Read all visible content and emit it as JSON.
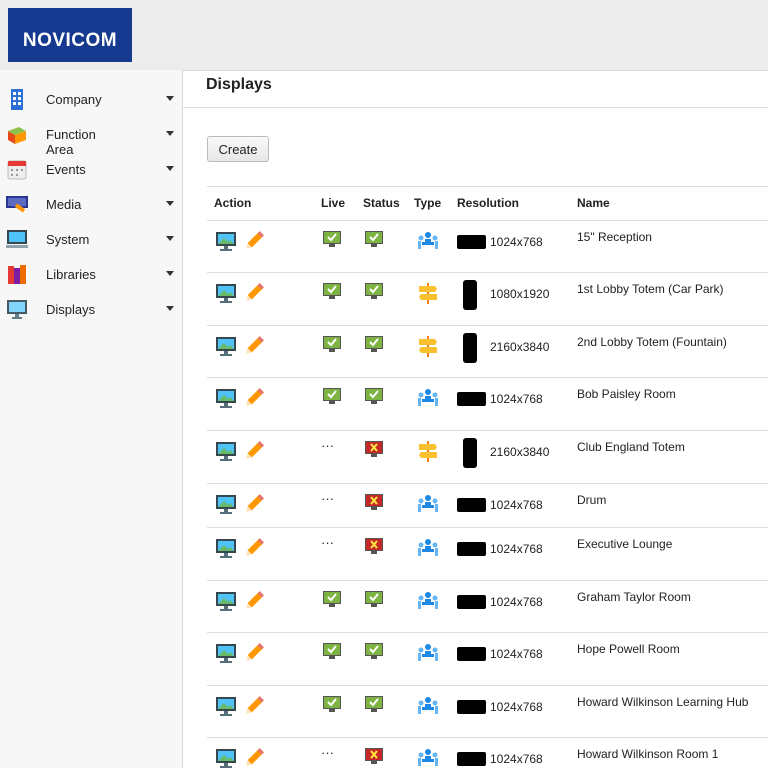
{
  "header": {
    "logo": "NOVICOM"
  },
  "menu": [
    {
      "label": "Company"
    },
    {
      "label": "Function Area"
    },
    {
      "label": "Events"
    },
    {
      "label": "Media"
    },
    {
      "label": "System"
    },
    {
      "label": "Libraries"
    },
    {
      "label": "Displays"
    }
  ],
  "page": {
    "title": "Displays",
    "create_button": "Create"
  },
  "table": {
    "columns": [
      "Action",
      "Live",
      "Status",
      "Type",
      "Resolution",
      "Name"
    ],
    "rows": [
      {
        "live": true,
        "status": true,
        "type": "room",
        "resolution": "1024x768",
        "name": "15\" Reception"
      },
      {
        "live": true,
        "status": true,
        "type": "totem",
        "resolution": "1080x1920",
        "name": "1st Lobby Totem (Car Park)"
      },
      {
        "live": true,
        "status": true,
        "type": "totem",
        "resolution": "2160x3840",
        "name": "2nd Lobby Totem (Fountain)"
      },
      {
        "live": true,
        "status": true,
        "type": "room",
        "resolution": "1024x768",
        "name": "Bob Paisley Room"
      },
      {
        "live": "···",
        "status": false,
        "type": "totem",
        "resolution": "2160x3840",
        "name": "Club England Totem"
      },
      {
        "live": "···",
        "status": false,
        "type": "room",
        "resolution": "1024x768",
        "name": "Drum"
      },
      {
        "live": "···",
        "status": false,
        "type": "room",
        "resolution": "1024x768",
        "name": "Executive Lounge"
      },
      {
        "live": true,
        "status": true,
        "type": "room",
        "resolution": "1024x768",
        "name": "Graham Taylor Room"
      },
      {
        "live": true,
        "status": true,
        "type": "room",
        "resolution": "1024x768",
        "name": "Hope Powell Room"
      },
      {
        "live": true,
        "status": true,
        "type": "room",
        "resolution": "1024x768",
        "name": "Howard Wilkinson Learning Hub"
      },
      {
        "live": "···",
        "status": false,
        "type": "room",
        "resolution": "1024x768",
        "name": "Howard Wilkinson Room 1"
      }
    ]
  }
}
